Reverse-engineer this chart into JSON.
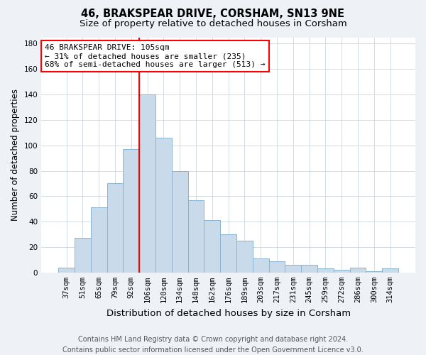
{
  "title": "46, BRAKSPEAR DRIVE, CORSHAM, SN13 9NE",
  "subtitle": "Size of property relative to detached houses in Corsham",
  "xlabel": "Distribution of detached houses by size in Corsham",
  "ylabel": "Number of detached properties",
  "bar_labels": [
    "37sqm",
    "51sqm",
    "65sqm",
    "79sqm",
    "92sqm",
    "106sqm",
    "120sqm",
    "134sqm",
    "148sqm",
    "162sqm",
    "176sqm",
    "189sqm",
    "203sqm",
    "217sqm",
    "231sqm",
    "245sqm",
    "259sqm",
    "272sqm",
    "286sqm",
    "300sqm",
    "314sqm"
  ],
  "bar_values": [
    4,
    27,
    51,
    70,
    97,
    140,
    106,
    80,
    57,
    41,
    30,
    25,
    11,
    9,
    6,
    6,
    3,
    2,
    4,
    1,
    3
  ],
  "bar_color": "#c9daea",
  "bar_edge_color": "#8ab4d0",
  "reference_line_x": 5,
  "annotation_line1": "46 BRAKSPEAR DRIVE: 105sqm",
  "annotation_line2": "← 31% of detached houses are smaller (235)",
  "annotation_line3": "68% of semi-detached houses are larger (513) →",
  "annotation_box_color": "white",
  "annotation_box_edge_color": "red",
  "ylim": [
    0,
    185
  ],
  "yticks": [
    0,
    20,
    40,
    60,
    80,
    100,
    120,
    140,
    160,
    180
  ],
  "footer_text": "Contains HM Land Registry data © Crown copyright and database right 2024.\nContains public sector information licensed under the Open Government Licence v3.0.",
  "title_fontsize": 10.5,
  "subtitle_fontsize": 9.5,
  "xlabel_fontsize": 9.5,
  "ylabel_fontsize": 8.5,
  "tick_fontsize": 7.5,
  "footer_fontsize": 7,
  "annotation_fontsize": 8,
  "bg_color": "#eef2f7",
  "plot_bg_color": "#ffffff",
  "gridcolor": "#ccd6e0"
}
